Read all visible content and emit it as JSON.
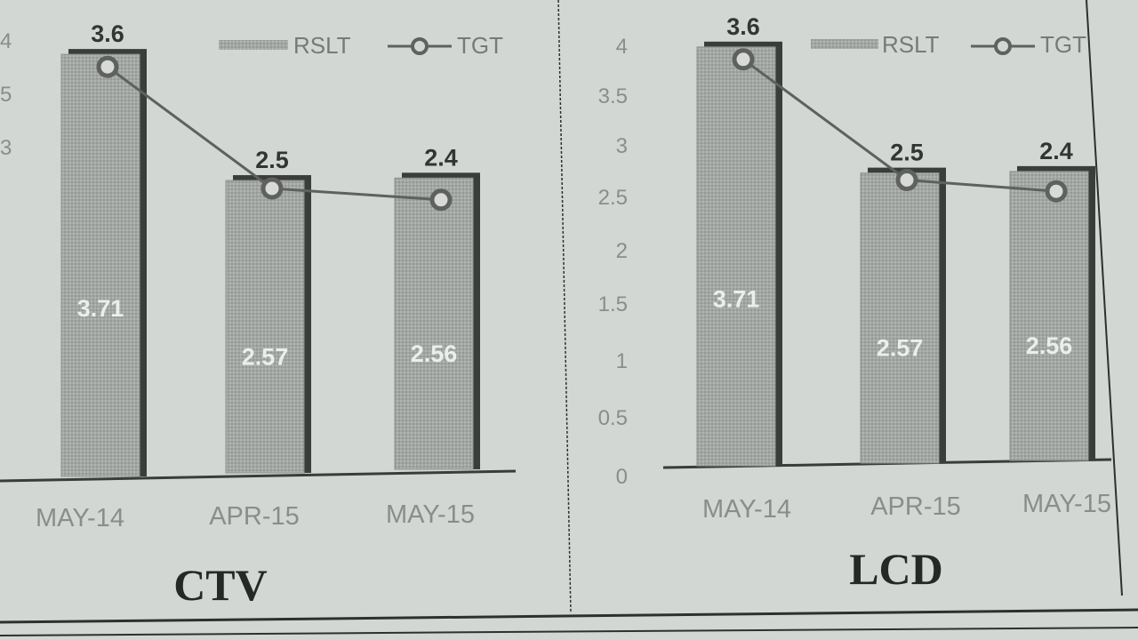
{
  "chart_data": [
    {
      "type": "bar",
      "title": "CTV",
      "categories": [
        "MAY-14",
        "APR-15",
        "MAY-15"
      ],
      "series": [
        {
          "name": "RSLT",
          "type": "bar",
          "values": [
            3.71,
            2.57,
            2.56
          ]
        },
        {
          "name": "TGT",
          "type": "line",
          "values": [
            3.6,
            2.5,
            2.4
          ]
        }
      ],
      "yticks": [
        "4",
        "5",
        "3"
      ],
      "ylim": [
        0,
        4
      ],
      "legend": "top",
      "grid": false,
      "colors": {
        "bar": "#a5a9a5",
        "line": "#5e615e"
      }
    },
    {
      "type": "bar",
      "title": "LCD",
      "categories": [
        "MAY-14",
        "APR-15",
        "MAY-15"
      ],
      "series": [
        {
          "name": "RSLT",
          "type": "bar",
          "values": [
            3.71,
            2.57,
            2.56
          ]
        },
        {
          "name": "TGT",
          "type": "line",
          "values": [
            3.6,
            2.5,
            2.4
          ]
        }
      ],
      "yticks": [
        "4",
        "3.5",
        "3",
        "2.5",
        "2",
        "1.5",
        "1",
        "0.5",
        "0"
      ],
      "ylim": [
        0,
        4
      ],
      "legend": "top",
      "grid": false,
      "colors": {
        "bar": "#a5a9a5",
        "line": "#5e615e"
      }
    }
  ]
}
